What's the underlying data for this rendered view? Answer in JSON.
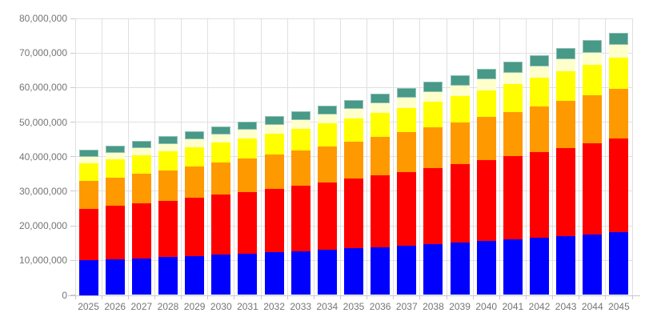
{
  "chart_data": {
    "type": "bar",
    "stacked": true,
    "legend": "none",
    "grid": true,
    "categories": [
      "2025",
      "2026",
      "2027",
      "2028",
      "2029",
      "2030",
      "2031",
      "2032",
      "2033",
      "2034",
      "2035",
      "2036",
      "2037",
      "2038",
      "2039",
      "2040",
      "2041",
      "2042",
      "2043",
      "2044",
      "2045"
    ],
    "series": [
      {
        "name": "blue",
        "color": "#0000ff",
        "values": [
          10000000,
          10300000,
          10609000,
          10927270,
          11255088,
          11592741,
          11940523,
          12298739,
          12667701,
          13047732,
          13439164,
          13842339,
          14257609,
          14685337,
          15125897,
          15579674,
          16047064,
          16528476,
          17024331,
          17535061,
          18061112
        ]
      },
      {
        "name": "red",
        "color": "#ff0000",
        "values": [
          15000000,
          15450000,
          15913500,
          16390905,
          16882632,
          17389111,
          17910784,
          18448108,
          19001551,
          19571598,
          20158746,
          20763508,
          21386413,
          22028006,
          22688846,
          23369511,
          24070597,
          24792714,
          25536496,
          26302591,
          27091668
        ]
      },
      {
        "name": "orange",
        "color": "#ff9900",
        "values": [
          8000000,
          8240000,
          8487200,
          8741816,
          9004070,
          9274193,
          9552418,
          9838991,
          10134161,
          10438185,
          10751331,
          11073871,
          11406087,
          11748270,
          12100718,
          12463739,
          12837652,
          13222781,
          13619465,
          14028048,
          14448890
        ]
      },
      {
        "name": "yellow",
        "color": "#ffff00",
        "values": [
          5000000,
          5150000,
          5304500,
          5463635,
          5627544,
          5796370,
          5970262,
          6149369,
          6333850,
          6523866,
          6719582,
          6921169,
          7128804,
          7342669,
          7562949,
          7789837,
          8023532,
          8264238,
          8512165,
          8767530,
          9030556
        ]
      },
      {
        "name": "pale-yellow",
        "color": "#ffffcc",
        "values": [
          2000000,
          2060000,
          2121800,
          2185454,
          2251018,
          2318548,
          2388105,
          2459748,
          2533540,
          2609546,
          2687833,
          2768468,
          2851522,
          2937067,
          3025179,
          3115935,
          3209413,
          3305695,
          3404866,
          3507012,
          3612222
        ]
      },
      {
        "name": "teal",
        "color": "#489987",
        "border_color": "#8fc2b6",
        "values": [
          2000000,
          2060000,
          2121800,
          2185454,
          2251018,
          2318548,
          2388105,
          2459748,
          2533540,
          2609546,
          2687833,
          2768468,
          2851522,
          2937067,
          3025179,
          3115935,
          3209413,
          3305695,
          3404866,
          3507012,
          3612222
        ]
      }
    ],
    "y_axis": {
      "min": 0,
      "max": 80000000,
      "tick_step": 10000000,
      "tick_labels": [
        "0",
        "10,000,000",
        "20,000,000",
        "30,000,000",
        "40,000,000",
        "50,000,000",
        "60,000,000",
        "70,000,000",
        "80,000,000"
      ]
    },
    "styles": {
      "background": "#ffffff",
      "gridline_color": "#e0e0e0",
      "axis_line_color": "#c9c9c9",
      "label_color": "#757575"
    }
  }
}
